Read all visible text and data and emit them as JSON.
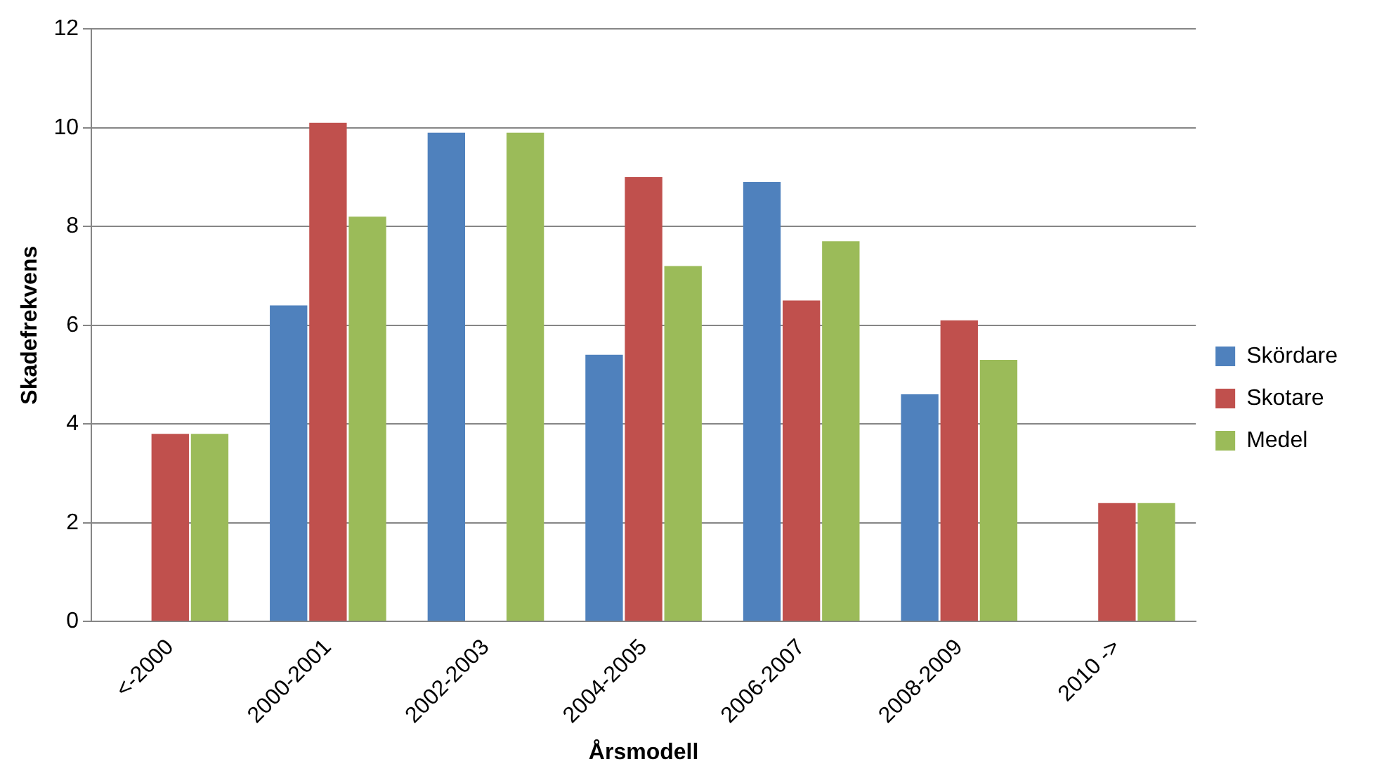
{
  "chart_data": {
    "type": "bar",
    "xlabel": "Årsmodell",
    "ylabel": "Skadefrekvens",
    "categories": [
      "<-2000",
      "2000-2001",
      "2002-2003",
      "2004-2005",
      "2006-2007",
      "2008-2009",
      "2010 ->"
    ],
    "series": [
      {
        "name": "Skördare",
        "color": "#4f81bd",
        "values": [
          null,
          6.4,
          9.9,
          5.4,
          8.9,
          4.6,
          null
        ]
      },
      {
        "name": "Skotare",
        "color": "#c0504d",
        "values": [
          3.8,
          10.1,
          null,
          9.0,
          6.5,
          6.1,
          2.4
        ]
      },
      {
        "name": "Medel",
        "color": "#9bbb59",
        "values": [
          3.8,
          8.2,
          9.9,
          7.2,
          7.7,
          5.3,
          2.4
        ]
      }
    ],
    "ylim": [
      0,
      12
    ],
    "yticks": [
      0,
      2,
      4,
      6,
      8,
      10,
      12
    ],
    "grid": "y",
    "legend": "right"
  }
}
